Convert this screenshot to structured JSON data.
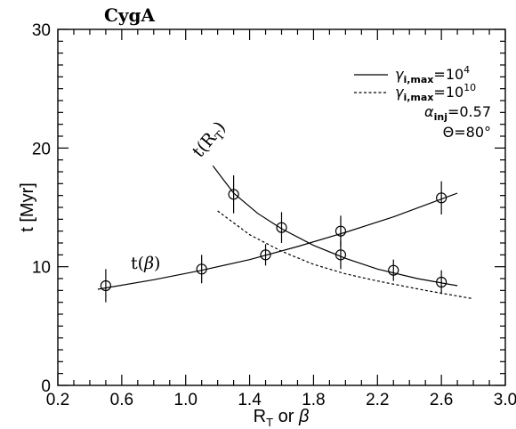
{
  "chart_data": {
    "type": "scatter",
    "title": "CygA",
    "xlabel": "R_T    or    β",
    "ylabel": "t  [Myr]",
    "xlim": [
      0.2,
      3.0
    ],
    "ylim": [
      0,
      30
    ],
    "x_ticks": [
      "0.2",
      "0.6",
      "1.0",
      "1.4",
      "1.8",
      "2.2",
      "2.6",
      "3.0"
    ],
    "y_ticks": [
      "0",
      "10",
      "20",
      "30"
    ],
    "legend": {
      "position": "top-right",
      "entries": [
        {
          "prefix": "γ",
          "sub": "i,max",
          "eq": "=10",
          "sup": "4",
          "style": "solid"
        },
        {
          "prefix": "γ",
          "sub": "i,max",
          "eq": "=10",
          "sup": "10",
          "style": "dotted"
        }
      ],
      "params": [
        {
          "prefix": "α",
          "sub": "inj",
          "value": "=0.57"
        },
        {
          "prefix": "Θ",
          "sub": "",
          "value": "=80°"
        }
      ]
    },
    "series": [
      {
        "label_main": "t(",
        "label_var": "β",
        "label_end": ")",
        "points": [
          {
            "x": 0.5,
            "y": 8.4,
            "err": 1.4
          },
          {
            "x": 1.1,
            "y": 9.8,
            "err": 1.2
          },
          {
            "x": 1.5,
            "y": 11.0,
            "err": 0.9
          },
          {
            "x": 1.97,
            "y": 13.0,
            "err": 1.3
          },
          {
            "x": 2.6,
            "y": 15.8,
            "err": 1.4
          }
        ],
        "curve": [
          [
            0.45,
            8.1
          ],
          [
            0.8,
            8.9
          ],
          [
            1.1,
            9.7
          ],
          [
            1.4,
            10.6
          ],
          [
            1.7,
            11.7
          ],
          [
            2.0,
            12.9
          ],
          [
            2.3,
            14.2
          ],
          [
            2.7,
            16.2
          ]
        ]
      },
      {
        "label_main": "t(R",
        "label_sub": "T",
        "label_end": ")",
        "points": [
          {
            "x": 1.3,
            "y": 16.1,
            "err": 1.6
          },
          {
            "x": 1.6,
            "y": 13.3,
            "err": 1.3
          },
          {
            "x": 1.97,
            "y": 11.0,
            "err": 1.2
          },
          {
            "x": 2.3,
            "y": 9.7,
            "err": 0.9
          },
          {
            "x": 2.6,
            "y": 8.7,
            "err": 1.0
          }
        ],
        "curve": [
          [
            1.17,
            18.5
          ],
          [
            1.3,
            16.2
          ],
          [
            1.45,
            14.5
          ],
          [
            1.6,
            13.2
          ],
          [
            1.8,
            11.8
          ],
          [
            2.0,
            10.7
          ],
          [
            2.2,
            9.8
          ],
          [
            2.45,
            9.0
          ],
          [
            2.7,
            8.4
          ]
        ],
        "curve_dotted": [
          [
            1.2,
            14.7
          ],
          [
            1.4,
            12.7
          ],
          [
            1.6,
            11.3
          ],
          [
            1.8,
            10.2
          ],
          [
            2.0,
            9.4
          ],
          [
            2.2,
            8.8
          ],
          [
            2.5,
            8.0
          ],
          [
            2.8,
            7.3
          ]
        ]
      }
    ]
  }
}
